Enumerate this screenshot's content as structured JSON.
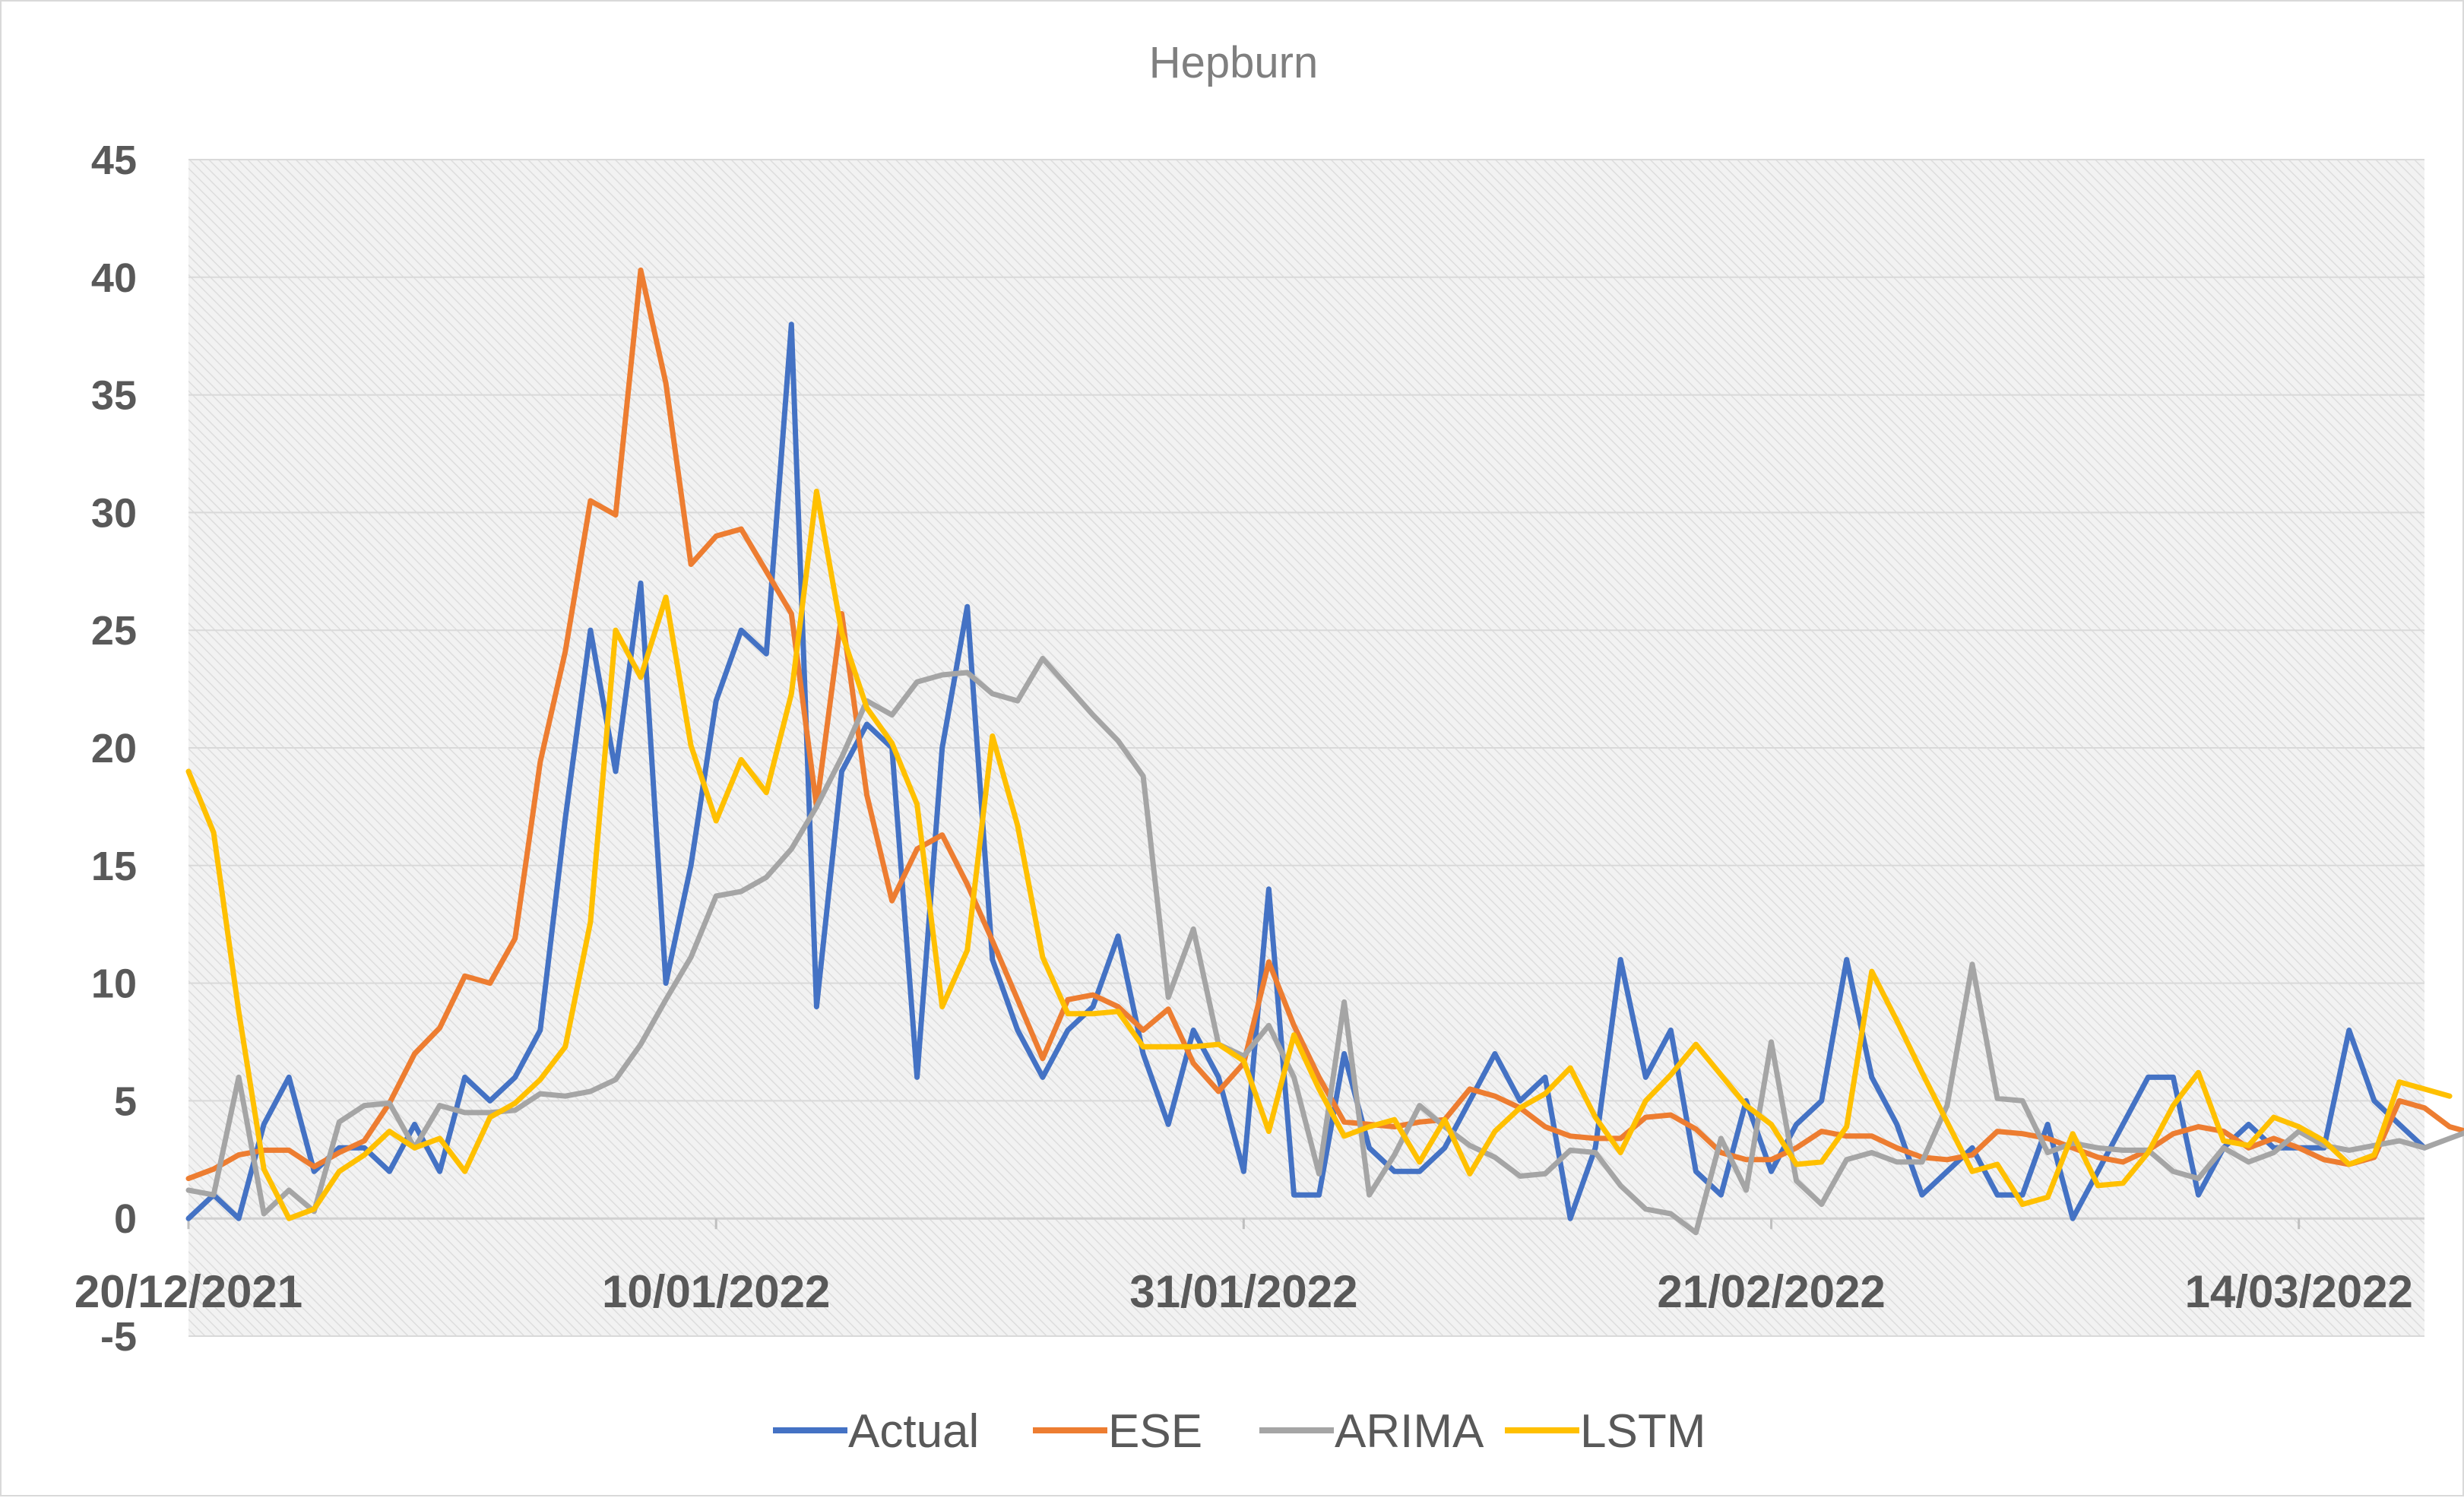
{
  "chart_data": {
    "type": "line",
    "title": "Hepburn",
    "xlabel": "",
    "ylabel": "",
    "ylim": [
      -5,
      45
    ],
    "yticks": [
      -5,
      0,
      5,
      10,
      15,
      20,
      25,
      30,
      35,
      40,
      45
    ],
    "x_tick_labels": [
      "20/12/2021",
      "10/01/2022",
      "31/01/2022",
      "21/02/2022",
      "14/03/2022"
    ],
    "x_tick_index": [
      0,
      21,
      42,
      63,
      84
    ],
    "grid": true,
    "legend_position": "bottom",
    "colors": {
      "Actual": "#4472c4",
      "ESE": "#ed7d31",
      "ARIMA": "#a5a5a5",
      "LSTM": "#ffc000"
    },
    "series": [
      {
        "name": "Actual",
        "values": [
          0,
          1,
          0,
          4,
          6,
          2,
          3,
          3,
          2,
          4,
          2,
          6,
          5,
          6,
          8,
          17,
          25,
          19,
          27,
          10,
          15,
          22,
          25,
          24,
          38,
          9,
          19,
          21,
          20,
          6,
          20,
          26,
          11,
          8,
          6,
          8,
          9,
          12,
          7,
          4,
          8,
          6,
          2,
          14,
          1,
          1,
          7,
          3,
          2,
          2,
          3,
          5,
          7,
          5,
          6,
          0,
          3,
          11,
          6,
          8,
          2,
          1,
          5,
          2,
          4,
          5,
          11,
          6,
          4,
          1,
          2,
          3,
          1,
          1,
          4,
          0,
          2,
          4,
          6,
          6,
          1,
          3,
          4,
          3,
          3,
          3,
          8,
          5,
          4,
          3
        ]
      },
      {
        "name": "ESE",
        "values": [
          1.7,
          2.1,
          2.7,
          2.9,
          2.9,
          2.2,
          2.8,
          3.3,
          4.9,
          7.0,
          8.1,
          10.3,
          10.0,
          11.9,
          19.4,
          24.1,
          30.5,
          29.9,
          40.3,
          35.5,
          27.8,
          29.0,
          29.3,
          27.5,
          25.7,
          17.5,
          25.7,
          18.0,
          13.5,
          15.7,
          16.3,
          14.2,
          11.8,
          9.3,
          6.8,
          9.3,
          9.5,
          9.0,
          8.0,
          8.9,
          6.6,
          5.4,
          6.6,
          10.9,
          8.2,
          6.0,
          4.1,
          4.0,
          3.9,
          4.1,
          4.2,
          5.5,
          5.2,
          4.7,
          3.9,
          3.5,
          3.4,
          3.4,
          4.3,
          4.4,
          3.8,
          2.8,
          2.5,
          2.5,
          3.0,
          3.7,
          3.5,
          3.5,
          3.0,
          2.6,
          2.5,
          2.7,
          3.7,
          3.6,
          3.4,
          3.0,
          2.6,
          2.4,
          2.9,
          3.6,
          3.9,
          3.7,
          3.0,
          3.4,
          3.0,
          2.5,
          2.3,
          2.6,
          5.0,
          4.7,
          3.9,
          3.6
        ]
      },
      {
        "name": "ARIMA",
        "values": [
          1.2,
          1.0,
          6.0,
          0.2,
          1.2,
          0.3,
          4.1,
          4.8,
          4.9,
          3.0,
          4.8,
          4.5,
          4.5,
          4.6,
          5.3,
          5.2,
          5.4,
          5.9,
          7.4,
          9.3,
          11.1,
          13.7,
          13.9,
          14.5,
          15.7,
          17.5,
          19.6,
          22.0,
          21.4,
          22.8,
          23.1,
          23.2,
          22.3,
          22.0,
          23.8,
          22.6,
          21.4,
          20.3,
          18.8,
          9.4,
          12.3,
          7.4,
          6.9,
          8.2,
          6.0,
          1.9,
          9.2,
          1.0,
          2.7,
          4.8,
          3.9,
          3.1,
          2.6,
          1.8,
          1.9,
          2.9,
          2.8,
          1.4,
          0.4,
          0.2,
          -0.6,
          3.4,
          1.2,
          7.5,
          1.6,
          0.6,
          2.5,
          2.8,
          2.4,
          2.4,
          4.8,
          10.8,
          5.1,
          5.0,
          2.8,
          3.2,
          3.0,
          2.9,
          2.9,
          2.0,
          1.7,
          3.0,
          2.4,
          2.8,
          3.7,
          3.1,
          2.9,
          3.1,
          3.3,
          3.0,
          3.4,
          3.8
        ]
      },
      {
        "name": "LSTM",
        "values": [
          19.0,
          16.4,
          8.8,
          2.1,
          0.0,
          0.4,
          2.0,
          2.7,
          3.7,
          3.0,
          3.4,
          2.0,
          4.3,
          4.9,
          5.9,
          7.3,
          12.6,
          25.0,
          23.0,
          26.4,
          20.1,
          16.9,
          19.5,
          18.1,
          22.3,
          30.9,
          24.9,
          21.7,
          20.2,
          17.6,
          9.0,
          11.4,
          20.5,
          16.7,
          11.1,
          8.7,
          8.7,
          8.8,
          7.3,
          7.3,
          7.3,
          7.4,
          6.7,
          3.7,
          7.8,
          5.5,
          3.5,
          3.9,
          4.2,
          2.4,
          4.2,
          1.9,
          3.7,
          4.7,
          5.3,
          6.4,
          4.3,
          2.8,
          5.0,
          6.1,
          7.4,
          6.1,
          4.8,
          4.0,
          2.3,
          2.4,
          3.9,
          10.5,
          8.4,
          6.2,
          4.1,
          2.0,
          2.3,
          0.6,
          0.9,
          3.6,
          1.4,
          1.5,
          2.8,
          4.8,
          6.2,
          3.3,
          3.1,
          4.3,
          3.9,
          3.3,
          2.3,
          2.7,
          5.8,
          5.5,
          5.2
        ]
      }
    ]
  }
}
